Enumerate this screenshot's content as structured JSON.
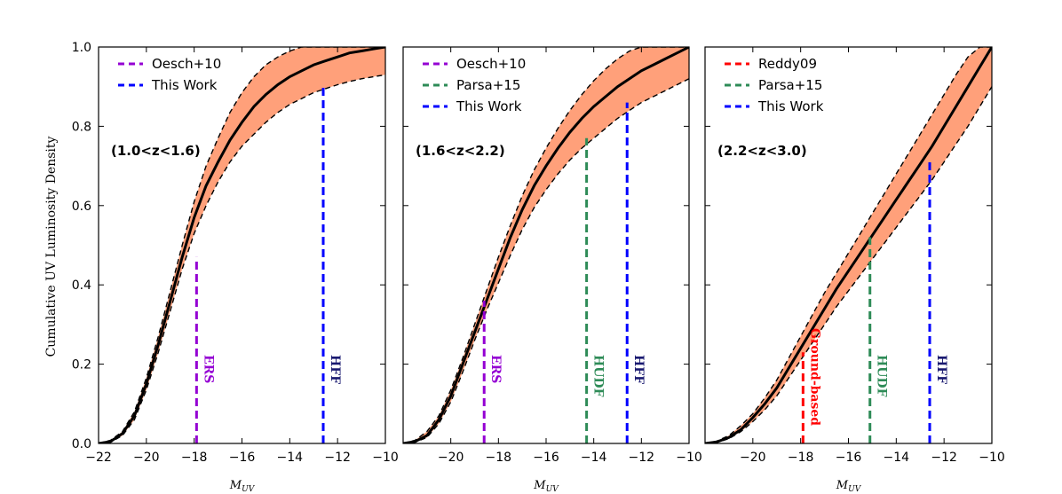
{
  "y_axis_label": "Cumulative UV Luminosity Density",
  "chart_data": [
    {
      "type": "line",
      "redshift_label": "(1.0<z<1.6)",
      "xlabel": "M_UV",
      "xlim": [
        -22,
        -10
      ],
      "ylim": [
        0.0,
        1.0
      ],
      "x_ticks": [
        "−22",
        "−20",
        "−18",
        "−16",
        "−14",
        "−12",
        "−10"
      ],
      "y_ticks": [
        "0.0",
        "0.2",
        "0.4",
        "0.6",
        "0.8",
        "1.0"
      ],
      "median": {
        "x": [
          -22,
          -21.5,
          -21,
          -20.5,
          -20,
          -19.5,
          -19,
          -18.5,
          -18,
          -17.5,
          -17,
          -16.5,
          -16,
          -15.5,
          -15,
          -14.5,
          -14,
          -13.5,
          -13,
          -12.5,
          -12,
          -11.5,
          -11,
          -10.5,
          -10
        ],
        "y": [
          0,
          0.005,
          0.025,
          0.07,
          0.15,
          0.25,
          0.36,
          0.47,
          0.57,
          0.65,
          0.71,
          0.765,
          0.81,
          0.85,
          0.88,
          0.905,
          0.925,
          0.94,
          0.955,
          0.965,
          0.975,
          0.985,
          0.99,
          0.995,
          1.0
        ]
      },
      "lower": [
        0,
        0.003,
        0.02,
        0.06,
        0.135,
        0.23,
        0.335,
        0.44,
        0.53,
        0.6,
        0.66,
        0.71,
        0.75,
        0.78,
        0.81,
        0.835,
        0.855,
        0.87,
        0.885,
        0.895,
        0.905,
        0.913,
        0.92,
        0.925,
        0.93
      ],
      "upper": [
        0,
        0.008,
        0.03,
        0.08,
        0.165,
        0.27,
        0.385,
        0.5,
        0.61,
        0.7,
        0.77,
        0.835,
        0.885,
        0.925,
        0.955,
        0.975,
        0.99,
        1.0,
        1.0,
        1.0,
        1.0,
        1.0,
        1.0,
        1.0,
        1.0
      ],
      "legend": [
        {
          "label": "Oesch+10",
          "color": "#9400d3"
        },
        {
          "label": "This Work",
          "color": "#0000ff"
        }
      ],
      "limits": [
        {
          "x": -17.9,
          "y": 0.47,
          "color": "#9400d3",
          "label": "ERS"
        },
        {
          "x": -12.6,
          "y": 0.9,
          "color": "#0000ff",
          "label": "HFF",
          "label_color": "#191970"
        }
      ]
    },
    {
      "type": "line",
      "redshift_label": "(1.6<z<2.2)",
      "xlabel": "M_UV",
      "xlim": [
        -22,
        -10
      ],
      "ylim": [
        0.0,
        1.0
      ],
      "x_ticks": [
        "−20",
        "−18",
        "−16",
        "−14",
        "−12",
        "−10"
      ],
      "median": {
        "x": [
          -22,
          -21.5,
          -21,
          -20.5,
          -20,
          -19.5,
          -19,
          -18.5,
          -18,
          -17.5,
          -17,
          -16.5,
          -16,
          -15.5,
          -15,
          -14.5,
          -14,
          -13.5,
          -13,
          -12.5,
          -12,
          -11.5,
          -11,
          -10.5,
          -10
        ],
        "y": [
          0,
          0.005,
          0.02,
          0.06,
          0.12,
          0.2,
          0.28,
          0.36,
          0.44,
          0.52,
          0.59,
          0.65,
          0.7,
          0.745,
          0.785,
          0.82,
          0.85,
          0.875,
          0.9,
          0.92,
          0.94,
          0.955,
          0.97,
          0.985,
          1.0
        ]
      },
      "lower": [
        0,
        0.003,
        0.015,
        0.05,
        0.105,
        0.18,
        0.26,
        0.335,
        0.405,
        0.475,
        0.54,
        0.595,
        0.64,
        0.68,
        0.715,
        0.745,
        0.77,
        0.795,
        0.82,
        0.84,
        0.86,
        0.875,
        0.89,
        0.905,
        0.92
      ],
      "upper": [
        0,
        0.008,
        0.03,
        0.07,
        0.135,
        0.215,
        0.3,
        0.385,
        0.47,
        0.55,
        0.625,
        0.69,
        0.745,
        0.795,
        0.84,
        0.88,
        0.915,
        0.945,
        0.97,
        0.99,
        1.0,
        1.0,
        1.0,
        1.0,
        1.0
      ],
      "legend": [
        {
          "label": "Oesch+10",
          "color": "#9400d3"
        },
        {
          "label": "Parsa+15",
          "color": "#2e8b57"
        },
        {
          "label": "This Work",
          "color": "#0000ff"
        }
      ],
      "limits": [
        {
          "x": -18.6,
          "y": 0.36,
          "color": "#9400d3",
          "label": "ERS"
        },
        {
          "x": -14.3,
          "y": 0.77,
          "color": "#2e8b57",
          "label": "HUDF"
        },
        {
          "x": -12.6,
          "y": 0.86,
          "color": "#0000ff",
          "label": "HFF",
          "label_color": "#191970"
        }
      ]
    },
    {
      "type": "line",
      "redshift_label": "(2.2<z<3.0)",
      "xlabel": "M_UV",
      "xlim": [
        -22,
        -10
      ],
      "ylim": [
        0.0,
        1.0
      ],
      "x_ticks": [
        "−20",
        "−18",
        "−16",
        "−14",
        "−12",
        "−10"
      ],
      "median": {
        "x": [
          -22,
          -21.5,
          -21,
          -20.5,
          -20,
          -19.5,
          -19,
          -18.5,
          -18,
          -17.5,
          -17,
          -16.5,
          -16,
          -15.5,
          -15,
          -14.5,
          -14,
          -13.5,
          -13,
          -12.5,
          -12,
          -11.5,
          -11,
          -10.5,
          -10
        ],
        "y": [
          0,
          0.004,
          0.015,
          0.035,
          0.065,
          0.1,
          0.14,
          0.19,
          0.24,
          0.29,
          0.34,
          0.39,
          0.435,
          0.48,
          0.525,
          0.57,
          0.615,
          0.66,
          0.705,
          0.75,
          0.8,
          0.85,
          0.9,
          0.95,
          1.0
        ]
      },
      "lower": [
        0,
        0.003,
        0.012,
        0.03,
        0.055,
        0.085,
        0.12,
        0.165,
        0.21,
        0.255,
        0.3,
        0.345,
        0.385,
        0.425,
        0.465,
        0.505,
        0.545,
        0.585,
        0.625,
        0.665,
        0.71,
        0.755,
        0.8,
        0.85,
        0.9
      ],
      "upper": [
        0,
        0.006,
        0.02,
        0.045,
        0.075,
        0.115,
        0.16,
        0.215,
        0.27,
        0.325,
        0.38,
        0.43,
        0.48,
        0.53,
        0.58,
        0.63,
        0.68,
        0.73,
        0.78,
        0.83,
        0.88,
        0.93,
        0.975,
        1.0,
        1.0
      ],
      "legend": [
        {
          "label": "Reddy09",
          "color": "#ff0000"
        },
        {
          "label": "Parsa+15",
          "color": "#2e8b57"
        },
        {
          "label": "This Work",
          "color": "#0000ff"
        }
      ],
      "limits": [
        {
          "x": -17.9,
          "y": 0.23,
          "color": "#ff0000",
          "label": "Ground-based"
        },
        {
          "x": -15.1,
          "y": 0.52,
          "color": "#2e8b57",
          "label": "HUDF"
        },
        {
          "x": -12.6,
          "y": 0.72,
          "color": "#0000ff",
          "label": "HFF",
          "label_color": "#191970"
        }
      ]
    }
  ],
  "colors": {
    "band_fill": "#ffa07a",
    "median_line": "#000000",
    "bound_line": "#000000"
  }
}
